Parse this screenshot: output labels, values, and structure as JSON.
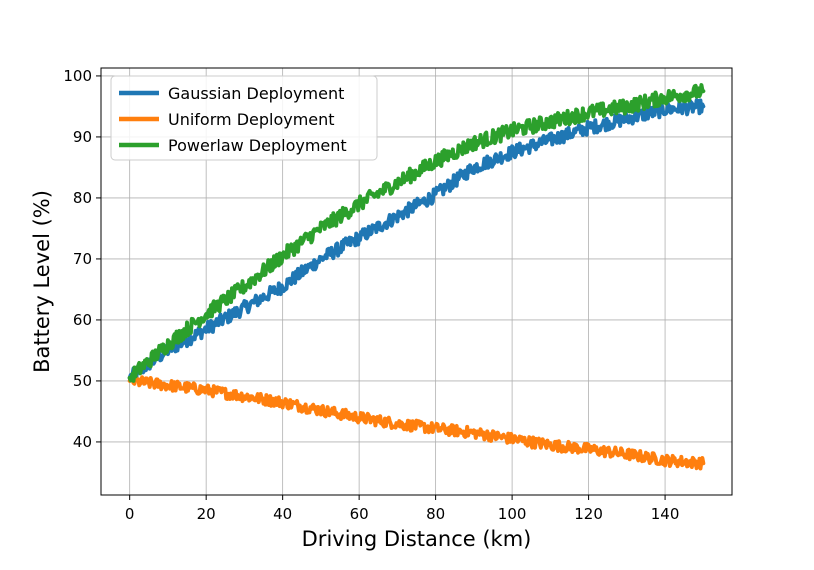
{
  "chart_data": {
    "type": "line",
    "title": "",
    "xlabel": "Driving Distance (km)",
    "ylabel": "Battery Level (%)",
    "xlim": [
      -7.5,
      157.5
    ],
    "ylim": [
      31.3,
      101.3
    ],
    "xticks": [
      0,
      20,
      40,
      60,
      80,
      100,
      120,
      140
    ],
    "yticks": [
      40,
      50,
      60,
      70,
      80,
      90,
      100
    ],
    "grid": true,
    "legend_position": "upper-left",
    "x": [
      0,
      10,
      20,
      30,
      40,
      50,
      60,
      70,
      80,
      90,
      100,
      110,
      120,
      130,
      140,
      150
    ],
    "series": [
      {
        "name": "Gaussian Deployment",
        "color": "#1f77b4",
        "values": [
          50.5,
          55.0,
          58.5,
          62.0,
          65.5,
          70.0,
          73.5,
          77.0,
          80.5,
          85.0,
          87.5,
          89.5,
          91.5,
          93.0,
          94.5,
          95.0
        ]
      },
      {
        "name": "Uniform Deployment",
        "color": "#ff7f0e",
        "values": [
          50.0,
          49.3,
          48.5,
          47.5,
          46.5,
          45.2,
          44.0,
          43.0,
          42.2,
          41.5,
          40.5,
          39.5,
          38.8,
          38.0,
          37.0,
          36.5
        ]
      },
      {
        "name": "Powerlaw Deployment",
        "color": "#2ca02c",
        "values": [
          50.5,
          56.0,
          61.0,
          65.5,
          70.5,
          75.0,
          79.0,
          82.5,
          86.0,
          89.0,
          91.0,
          92.5,
          94.0,
          95.0,
          96.5,
          97.5
        ]
      }
    ]
  }
}
